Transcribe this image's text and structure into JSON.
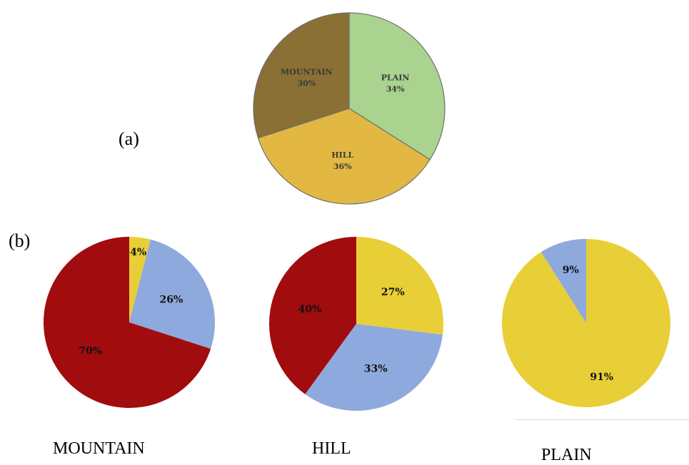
{
  "labels": {
    "a": "(a)",
    "b": "(b)"
  },
  "captions": {
    "mountain": "MOUNTAIN",
    "hill": "HILL",
    "plain": "PLAIN"
  },
  "colors": {
    "mountain_terrain": "#8a7034",
    "plain_terrain": "#a9d38e",
    "hill_terrain": "#e3b842",
    "dark_red": "#a10c0e",
    "light_blue": "#8ea9dd",
    "yellow": "#e8cf37"
  },
  "chart_data": [
    {
      "id": "a",
      "type": "pie",
      "title": "",
      "slices": [
        {
          "label": "PLAIN",
          "value_text": "34%",
          "value": 34,
          "color": "#a9d38e"
        },
        {
          "label": "HILL",
          "value_text": "36%",
          "value": 36,
          "color": "#e3b842"
        },
        {
          "label": "MOUNTAIN",
          "value_text": "30%",
          "value": 30,
          "color": "#8a7034"
        }
      ]
    },
    {
      "id": "b-mountain",
      "type": "pie",
      "title": "MOUNTAIN",
      "slices": [
        {
          "label": "",
          "value_text": "4%",
          "value": 4,
          "color": "#e8cf37"
        },
        {
          "label": "",
          "value_text": "26%",
          "value": 26,
          "color": "#8ea9dd"
        },
        {
          "label": "",
          "value_text": "70%",
          "value": 70,
          "color": "#a10c0e"
        }
      ]
    },
    {
      "id": "b-hill",
      "type": "pie",
      "title": "HILL",
      "slices": [
        {
          "label": "",
          "value_text": "27%",
          "value": 27,
          "color": "#e8cf37"
        },
        {
          "label": "",
          "value_text": "33%",
          "value": 33,
          "color": "#8ea9dd"
        },
        {
          "label": "",
          "value_text": "40%",
          "value": 40,
          "color": "#a10c0e"
        }
      ]
    },
    {
      "id": "b-plain",
      "type": "pie",
      "title": "PLAIN",
      "slices": [
        {
          "label": "",
          "value_text": "91%",
          "value": 91,
          "color": "#e8cf37"
        },
        {
          "label": "",
          "value_text": "9%",
          "value": 9,
          "color": "#8ea9dd"
        }
      ]
    }
  ]
}
